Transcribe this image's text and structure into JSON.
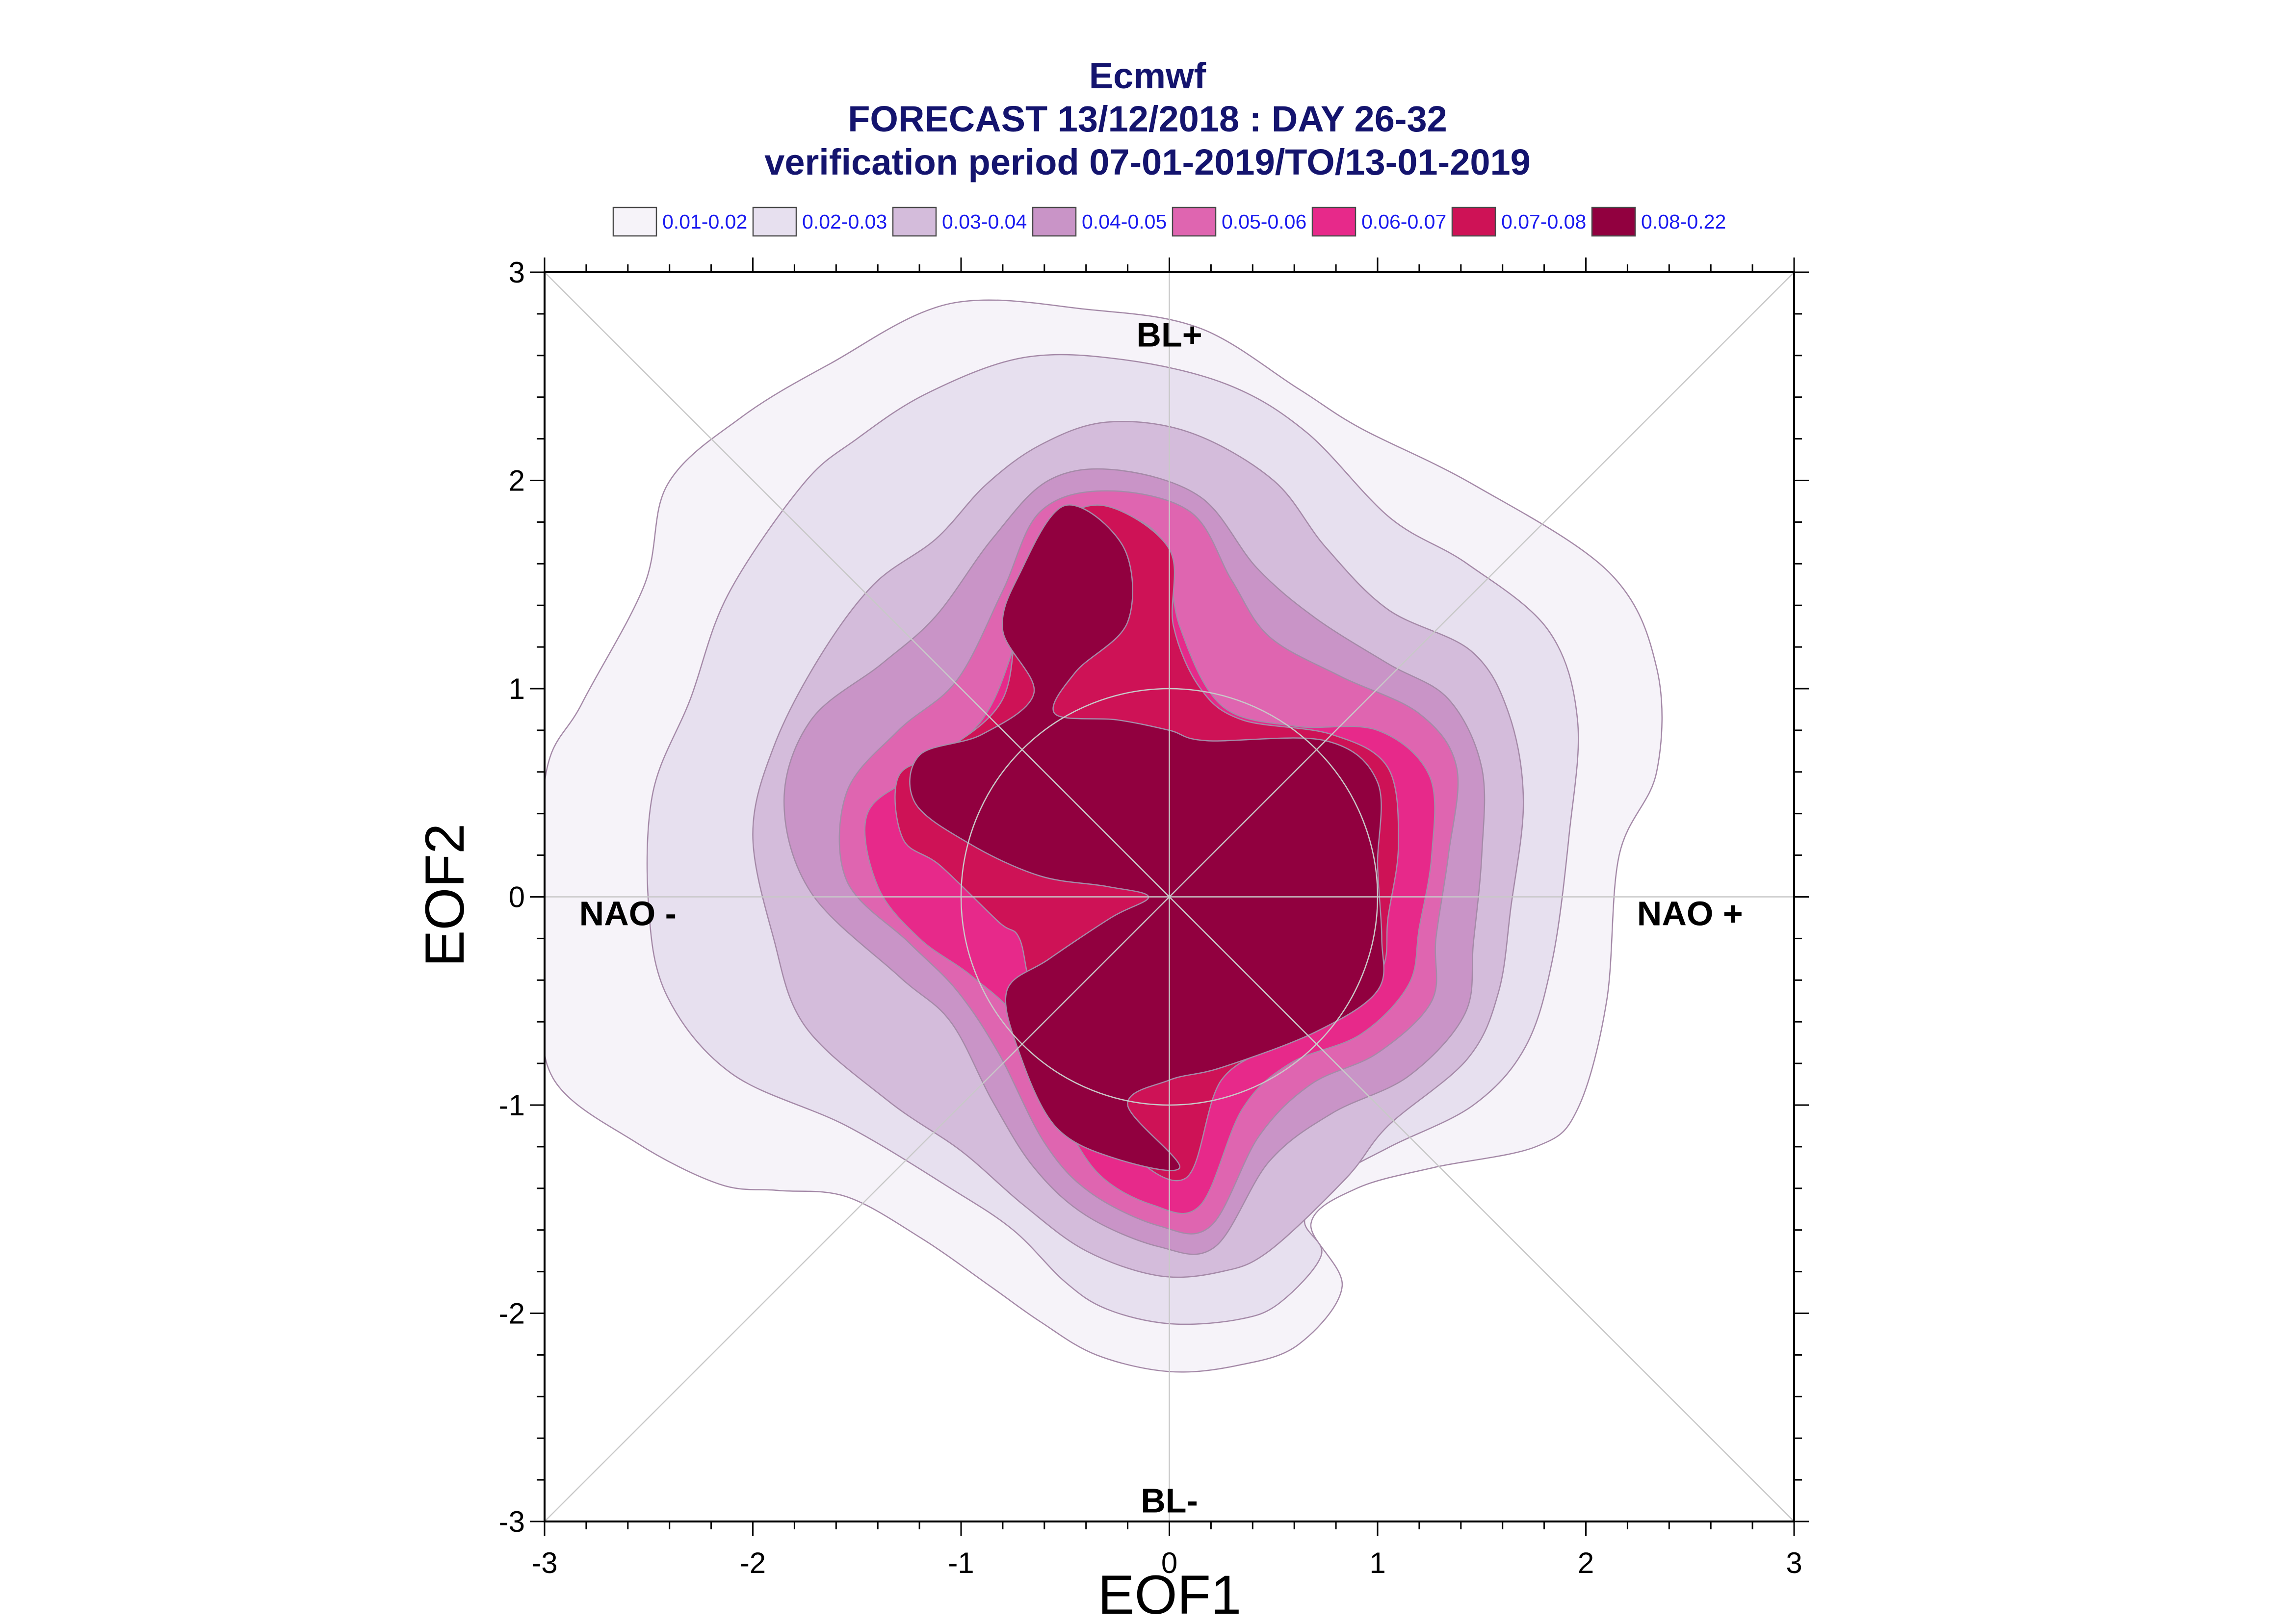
{
  "chart_data": {
    "type": "contour",
    "title": [
      "Ecmwf",
      "FORECAST 13/12/2018 : DAY 26-32",
      "verification period 07-01-2019/TO/13-01-2019"
    ],
    "xlabel": "EOF1",
    "ylabel": "EOF2",
    "xlim": [
      -3,
      3
    ],
    "ylim": [
      -3,
      3
    ],
    "xticks": [
      "-3",
      "-2",
      "-1",
      "0",
      "1",
      "2",
      "3"
    ],
    "yticks": [
      "3",
      "2",
      "1",
      "0",
      "-1",
      "-2",
      "-3"
    ],
    "legend": [
      {
        "label": "0.01-0.02",
        "color": "#f6f3f9"
      },
      {
        "label": "0.02-0.03",
        "color": "#e7e0ef"
      },
      {
        "label": "0.03-0.04",
        "color": "#d4bcdb"
      },
      {
        "label": "0.04-0.05",
        "color": "#c994c7"
      },
      {
        "label": "0.05-0.06",
        "color": "#df65b0"
      },
      {
        "label": "0.06-0.07",
        "color": "#e7298a"
      },
      {
        "label": "0.07-0.08",
        "color": "#ce1256"
      },
      {
        "label": "0.08-0.22",
        "color": "#91003f"
      }
    ],
    "regimes": [
      {
        "label": "BL+",
        "x": 0,
        "y": 2.7
      },
      {
        "label": "BL-",
        "x": 0,
        "y": -2.9
      },
      {
        "label": "NAO -",
        "x": -2.6,
        "y": -0.08
      },
      {
        "label": "NAO +",
        "x": 2.5,
        "y": -0.08
      }
    ],
    "reference_circle_radius": 1,
    "contours": [
      {
        "level": "0.01-0.02",
        "points": [
          [
            0.68,
            -1.57
          ],
          [
            0.83,
            -1.87
          ],
          [
            0.62,
            -2.15
          ],
          [
            0.33,
            -2.25
          ],
          [
            0,
            -2.28
          ],
          [
            -0.35,
            -2.2
          ],
          [
            -0.62,
            -2.04
          ],
          [
            -0.86,
            -1.87
          ],
          [
            -1.19,
            -1.64
          ],
          [
            -1.55,
            -1.44
          ],
          [
            -1.88,
            -1.41
          ],
          [
            -2.16,
            -1.38
          ],
          [
            -2.56,
            -1.18
          ],
          [
            -2.96,
            -0.87
          ],
          [
            -3,
            -0.4
          ],
          [
            -3,
            0.55
          ],
          [
            -2.82,
            0.93
          ],
          [
            -2.52,
            1.5
          ],
          [
            -2.41,
            1.98
          ],
          [
            -2.06,
            2.3
          ],
          [
            -1.63,
            2.56
          ],
          [
            -1.05,
            2.85
          ],
          [
            -0.38,
            2.82
          ],
          [
            0.15,
            2.73
          ],
          [
            0.62,
            2.44
          ],
          [
            0.92,
            2.25
          ],
          [
            1.46,
            1.98
          ],
          [
            2.11,
            1.56
          ],
          [
            2.34,
            1.1
          ],
          [
            2.34,
            0.6
          ],
          [
            2.16,
            0.2
          ],
          [
            2.1,
            -0.5
          ],
          [
            1.96,
            -1.02
          ],
          [
            1.76,
            -1.2
          ],
          [
            1.27,
            -1.3
          ],
          [
            0.9,
            -1.4
          ]
        ]
      },
      {
        "level": "0.02-0.03",
        "points": [
          [
            0.65,
            -1.55
          ],
          [
            0.73,
            -1.72
          ],
          [
            0.53,
            -1.95
          ],
          [
            0.33,
            -2.03
          ],
          [
            0,
            -2.05
          ],
          [
            -0.3,
            -1.98
          ],
          [
            -0.5,
            -1.85
          ],
          [
            -0.75,
            -1.6
          ],
          [
            -1.05,
            -1.4
          ],
          [
            -1.55,
            -1.1
          ],
          [
            -2.1,
            -0.85
          ],
          [
            -2.41,
            -0.48
          ],
          [
            -2.5,
            -0.05
          ],
          [
            -2.48,
            0.5
          ],
          [
            -2.3,
            0.95
          ],
          [
            -2.12,
            1.45
          ],
          [
            -1.76,
            1.98
          ],
          [
            -1.5,
            2.2
          ],
          [
            -1.16,
            2.42
          ],
          [
            -0.7,
            2.59
          ],
          [
            -0.22,
            2.58
          ],
          [
            0.28,
            2.46
          ],
          [
            0.66,
            2.23
          ],
          [
            1.06,
            1.82
          ],
          [
            1.43,
            1.6
          ],
          [
            1.82,
            1.28
          ],
          [
            1.96,
            0.85
          ],
          [
            1.92,
            0.3
          ],
          [
            1.84,
            -0.3
          ],
          [
            1.71,
            -0.72
          ],
          [
            1.46,
            -1.0
          ],
          [
            1.06,
            -1.2
          ],
          [
            0.8,
            -1.35
          ]
        ]
      },
      {
        "level": "0.03-0.04",
        "points": [
          [
            0.48,
            -1.7
          ],
          [
            0.25,
            -1.8
          ],
          [
            -0.05,
            -1.82
          ],
          [
            -0.4,
            -1.7
          ],
          [
            -0.7,
            -1.48
          ],
          [
            -1.0,
            -1.22
          ],
          [
            -1.35,
            -0.98
          ],
          [
            -1.75,
            -0.62
          ],
          [
            -1.9,
            -0.2
          ],
          [
            -2.0,
            0.3
          ],
          [
            -1.9,
            0.72
          ],
          [
            -1.68,
            1.15
          ],
          [
            -1.42,
            1.5
          ],
          [
            -1.12,
            1.72
          ],
          [
            -0.88,
            1.98
          ],
          [
            -0.62,
            2.17
          ],
          [
            -0.3,
            2.28
          ],
          [
            0.1,
            2.23
          ],
          [
            0.5,
            2.0
          ],
          [
            0.75,
            1.68
          ],
          [
            1.05,
            1.38
          ],
          [
            1.45,
            1.18
          ],
          [
            1.63,
            0.88
          ],
          [
            1.7,
            0.46
          ],
          [
            1.64,
            -0.05
          ],
          [
            1.58,
            -0.46
          ],
          [
            1.43,
            -0.78
          ],
          [
            1.05,
            -1.1
          ],
          [
            0.85,
            -1.35
          ]
        ]
      },
      {
        "level": "0.04-0.05",
        "points": [
          [
            0.22,
            -1.68
          ],
          [
            -0.05,
            -1.68
          ],
          [
            -0.4,
            -1.53
          ],
          [
            -0.65,
            -1.3
          ],
          [
            -0.85,
            -0.98
          ],
          [
            -1.05,
            -0.6
          ],
          [
            -1.3,
            -0.38
          ],
          [
            -1.72,
            0.02
          ],
          [
            -1.85,
            0.46
          ],
          [
            -1.72,
            0.85
          ],
          [
            -1.38,
            1.12
          ],
          [
            -1.12,
            1.35
          ],
          [
            -0.85,
            1.72
          ],
          [
            -0.58,
            2.0
          ],
          [
            -0.25,
            2.05
          ],
          [
            0.15,
            1.92
          ],
          [
            0.42,
            1.58
          ],
          [
            0.7,
            1.34
          ],
          [
            1.05,
            1.12
          ],
          [
            1.34,
            0.95
          ],
          [
            1.5,
            0.62
          ],
          [
            1.5,
            0.2
          ],
          [
            1.46,
            -0.22
          ],
          [
            1.42,
            -0.56
          ],
          [
            1.15,
            -0.86
          ],
          [
            0.78,
            -1.04
          ],
          [
            0.48,
            -1.27
          ]
        ]
      },
      {
        "level": "0.05-0.06",
        "points": [
          [
            0.2,
            -1.58
          ],
          [
            -0.05,
            -1.58
          ],
          [
            -0.38,
            -1.42
          ],
          [
            -0.6,
            -1.18
          ],
          [
            -0.82,
            -0.75
          ],
          [
            -1.02,
            -0.45
          ],
          [
            -1.25,
            -0.22
          ],
          [
            -1.55,
            0.08
          ],
          [
            -1.55,
            0.5
          ],
          [
            -1.3,
            0.8
          ],
          [
            -1.02,
            1.04
          ],
          [
            -0.8,
            1.47
          ],
          [
            -0.62,
            1.85
          ],
          [
            -0.3,
            1.95
          ],
          [
            0.1,
            1.85
          ],
          [
            0.3,
            1.52
          ],
          [
            0.48,
            1.25
          ],
          [
            0.82,
            1.06
          ],
          [
            1.2,
            0.88
          ],
          [
            1.38,
            0.62
          ],
          [
            1.34,
            0.2
          ],
          [
            1.28,
            -0.2
          ],
          [
            1.26,
            -0.5
          ],
          [
            1.0,
            -0.75
          ],
          [
            0.68,
            -0.9
          ],
          [
            0.43,
            -1.15
          ]
        ]
      },
      {
        "level": "0.06-0.07",
        "points": [
          [
            0.15,
            -1.48
          ],
          [
            -0.08,
            -1.48
          ],
          [
            -0.35,
            -1.32
          ],
          [
            -0.55,
            -0.98
          ],
          [
            -0.72,
            -0.6
          ],
          [
            -0.95,
            -0.38
          ],
          [
            -1.2,
            -0.2
          ],
          [
            -1.4,
            0.05
          ],
          [
            -1.45,
            0.4
          ],
          [
            -1.2,
            0.6
          ],
          [
            -0.9,
            0.85
          ],
          [
            -0.74,
            1.22
          ],
          [
            -0.62,
            1.65
          ],
          [
            -0.32,
            1.84
          ],
          [
            -0.04,
            1.72
          ],
          [
            0.05,
            1.3
          ],
          [
            0.25,
            0.92
          ],
          [
            0.6,
            0.82
          ],
          [
            1.0,
            0.8
          ],
          [
            1.25,
            0.58
          ],
          [
            1.26,
            0.2
          ],
          [
            1.2,
            -0.15
          ],
          [
            1.15,
            -0.42
          ],
          [
            0.92,
            -0.66
          ],
          [
            0.58,
            -0.8
          ],
          [
            0.35,
            -1.02
          ]
        ]
      },
      {
        "level": "0.07-0.08",
        "points": [
          [
            0.08,
            -1.35
          ],
          [
            -0.22,
            -1.2
          ],
          [
            -0.45,
            -0.85
          ],
          [
            -0.65,
            -0.48
          ],
          [
            -0.72,
            -0.2
          ],
          [
            -0.82,
            -0.12
          ],
          [
            -1.1,
            0.15
          ],
          [
            -1.28,
            0.28
          ],
          [
            -1.3,
            0.58
          ],
          [
            -1.08,
            0.7
          ],
          [
            -0.8,
            0.95
          ],
          [
            -0.72,
            1.4
          ],
          [
            -0.58,
            1.75
          ],
          [
            -0.32,
            1.88
          ],
          [
            0.0,
            1.67
          ],
          [
            0.02,
            1.3
          ],
          [
            0.15,
            1.0
          ],
          [
            0.35,
            0.85
          ],
          [
            0.78,
            0.78
          ],
          [
            1.05,
            0.62
          ],
          [
            1.1,
            0.25
          ],
          [
            1.05,
            -0.1
          ],
          [
            1.02,
            -0.35
          ],
          [
            0.82,
            -0.55
          ],
          [
            0.55,
            -0.7
          ],
          [
            0.25,
            -0.88
          ]
        ]
      },
      {
        "level": "0.08-0.22",
        "points": [
          [
            0.05,
            -1.3
          ],
          [
            -0.28,
            -1.25
          ],
          [
            -0.55,
            -1.1
          ],
          [
            -0.72,
            -0.75
          ],
          [
            -0.78,
            -0.45
          ],
          [
            -0.58,
            -0.3
          ],
          [
            -0.28,
            -0.1
          ],
          [
            -0.1,
            0.0
          ],
          [
            -0.3,
            0.05
          ],
          [
            -0.62,
            0.1
          ],
          [
            -0.95,
            0.25
          ],
          [
            -1.22,
            0.45
          ],
          [
            -1.2,
            0.68
          ],
          [
            -0.9,
            0.78
          ],
          [
            -0.65,
            0.98
          ],
          [
            -0.8,
            1.28
          ],
          [
            -0.72,
            1.55
          ],
          [
            -0.5,
            1.88
          ],
          [
            -0.22,
            1.68
          ],
          [
            -0.2,
            1.32
          ],
          [
            -0.45,
            1.08
          ],
          [
            -0.55,
            0.88
          ],
          [
            -0.25,
            0.85
          ],
          [
            0.0,
            0.8
          ],
          [
            0.18,
            0.75
          ],
          [
            0.75,
            0.75
          ],
          [
            1.0,
            0.55
          ],
          [
            1.0,
            0.15
          ],
          [
            1.02,
            -0.2
          ],
          [
            1.0,
            -0.45
          ],
          [
            0.7,
            -0.65
          ],
          [
            0.25,
            -0.82
          ],
          [
            0.0,
            -0.88
          ],
          [
            -0.2,
            -1.0
          ]
        ]
      }
    ]
  }
}
